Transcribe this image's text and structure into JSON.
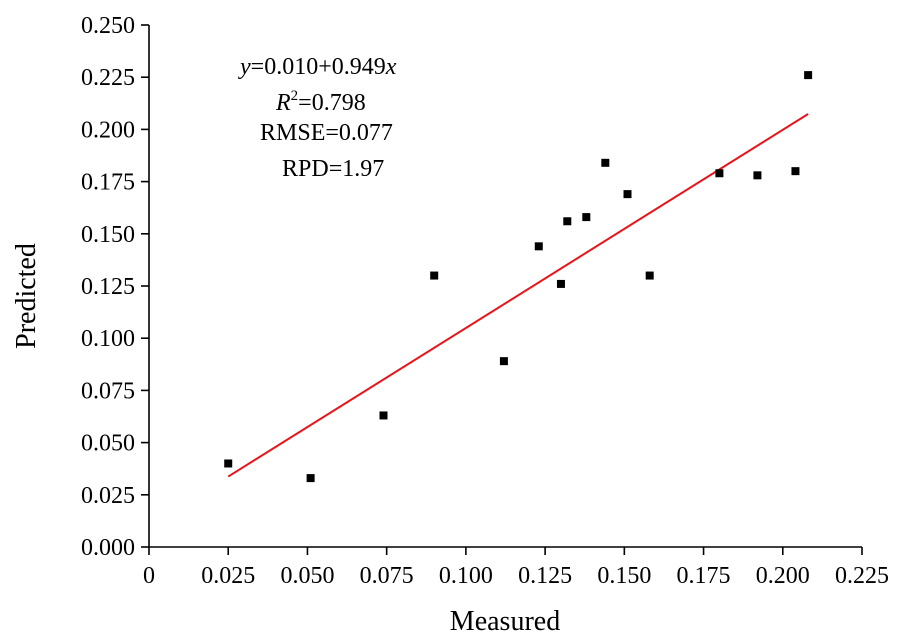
{
  "chart_data": {
    "type": "scatter",
    "xlabel": "Measured",
    "ylabel": "Predicted",
    "xlim": [
      0,
      0.225
    ],
    "ylim": [
      0,
      0.25
    ],
    "x_ticks": [
      "0",
      "0.025",
      "0.050",
      "0.075",
      "0.100",
      "0.125",
      "0.150",
      "0.175",
      "0.200",
      "0.225"
    ],
    "y_ticks": [
      "0.000",
      "0.025",
      "0.050",
      "0.075",
      "0.100",
      "0.125",
      "0.150",
      "0.175",
      "0.200",
      "0.225",
      "0.250"
    ],
    "grid": false,
    "points": [
      {
        "x": 0.025,
        "y": 0.04
      },
      {
        "x": 0.051,
        "y": 0.033
      },
      {
        "x": 0.074,
        "y": 0.063
      },
      {
        "x": 0.09,
        "y": 0.13
      },
      {
        "x": 0.112,
        "y": 0.089
      },
      {
        "x": 0.123,
        "y": 0.144
      },
      {
        "x": 0.13,
        "y": 0.126
      },
      {
        "x": 0.132,
        "y": 0.156
      },
      {
        "x": 0.138,
        "y": 0.158
      },
      {
        "x": 0.144,
        "y": 0.184
      },
      {
        "x": 0.151,
        "y": 0.169
      },
      {
        "x": 0.158,
        "y": 0.13
      },
      {
        "x": 0.18,
        "y": 0.179
      },
      {
        "x": 0.192,
        "y": 0.178
      },
      {
        "x": 0.204,
        "y": 0.18
      },
      {
        "x": 0.208,
        "y": 0.226
      }
    ],
    "fit_line": {
      "intercept": 0.01,
      "slope": 0.949,
      "x_range": [
        0.025,
        0.208
      ],
      "color": "#e8141a"
    },
    "point_color": "#000000",
    "annotations": {
      "equation": {
        "y_var": "y",
        "rhs": "=0.010+0.949",
        "x_var": "x"
      },
      "r2": {
        "symbol": "R",
        "exponent": "2",
        "value": "=0.798"
      },
      "rmse": "RMSE=0.077",
      "rpd": "RPD=1.97"
    }
  }
}
